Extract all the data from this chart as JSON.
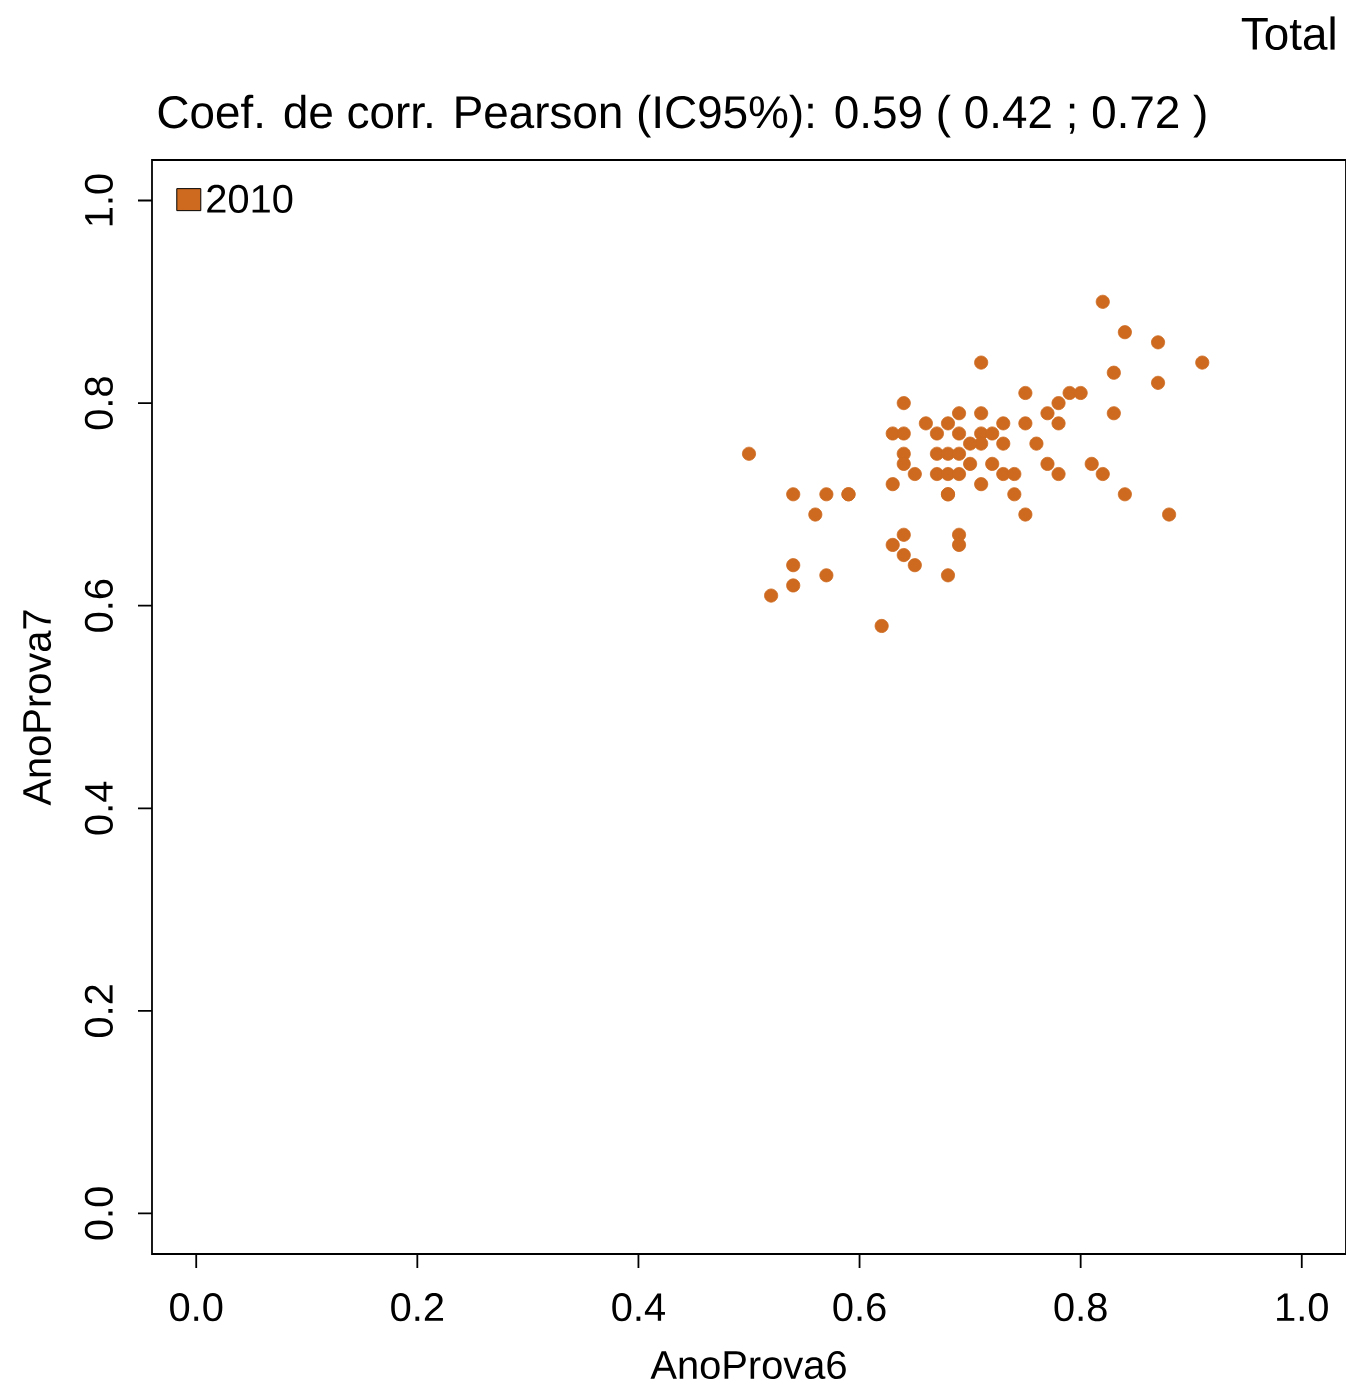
{
  "chart_data": {
    "type": "scatter",
    "title": "Total",
    "subtitle": "Coef. de corr. Pearson (IC95%):  0.59 ( 0.42 ;  0.72 )",
    "xlabel": "AnoProva6",
    "ylabel": "AnoProva7",
    "xlim": [
      -0.04,
      1.04
    ],
    "ylim": [
      -0.04,
      1.04
    ],
    "xticks": [
      {
        "value": 0,
        "label": "0.0"
      },
      0.2,
      0.4,
      0.6,
      0.8,
      {
        "value": 1,
        "label": "1.0"
      }
    ],
    "yticks": [
      {
        "value": 0,
        "label": "0.0"
      },
      0.2,
      0.4,
      0.6,
      0.8,
      {
        "value": 1,
        "label": "1.0"
      }
    ],
    "grid": false,
    "legend": "top left",
    "marker": "circle",
    "series": [
      {
        "name": "2010",
        "color": "#cd6a1f",
        "x": [
          0.82,
          0.84,
          0.87,
          0.91,
          0.71,
          0.83,
          0.87,
          0.83,
          0.75,
          0.79,
          0.8,
          0.78,
          0.77,
          0.64,
          0.78,
          0.75,
          0.73,
          0.66,
          0.68,
          0.69,
          0.71,
          0.67,
          0.69,
          0.71,
          0.72,
          0.63,
          0.64,
          0.73,
          0.76,
          0.71,
          0.7,
          0.5,
          0.64,
          0.67,
          0.68,
          0.69,
          0.64,
          0.65,
          0.67,
          0.68,
          0.69,
          0.7,
          0.72,
          0.73,
          0.74,
          0.74,
          0.71,
          0.77,
          0.78,
          0.81,
          0.82,
          0.84,
          0.88,
          0.75,
          0.63,
          0.68,
          0.68,
          0.54,
          0.57,
          0.59,
          0.59,
          0.56,
          0.64,
          0.63,
          0.64,
          0.69,
          0.69,
          0.65,
          0.68,
          0.54,
          0.54,
          0.57,
          0.52,
          0.62
        ],
        "values": [
          0.9,
          0.87,
          0.86,
          0.84,
          0.84,
          0.83,
          0.82,
          0.79,
          0.81,
          0.81,
          0.81,
          0.8,
          0.79,
          0.8,
          0.78,
          0.78,
          0.78,
          0.78,
          0.78,
          0.79,
          0.79,
          0.77,
          0.77,
          0.77,
          0.77,
          0.77,
          0.77,
          0.76,
          0.76,
          0.76,
          0.76,
          0.75,
          0.75,
          0.75,
          0.75,
          0.75,
          0.74,
          0.73,
          0.73,
          0.73,
          0.73,
          0.74,
          0.74,
          0.73,
          0.73,
          0.71,
          0.72,
          0.74,
          0.73,
          0.74,
          0.73,
          0.71,
          0.69,
          0.69,
          0.72,
          0.71,
          0.71,
          0.71,
          0.71,
          0.71,
          0.71,
          0.69,
          0.67,
          0.66,
          0.65,
          0.67,
          0.66,
          0.64,
          0.63,
          0.64,
          0.62,
          0.63,
          0.61,
          0.58
        ]
      }
    ]
  }
}
